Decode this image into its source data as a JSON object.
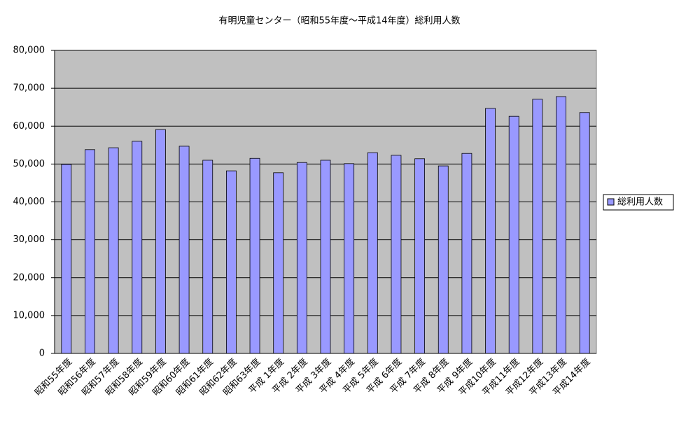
{
  "chart_data": {
    "type": "bar",
    "title": "有明児童センター（昭和55年度～平成14年度）総利用人数",
    "categories": [
      "昭和55年度",
      "昭和56年度",
      "昭和57年度",
      "昭和58年度",
      "昭和59年度",
      "昭和60年度",
      "昭和61年度",
      "昭和62年度",
      "昭和63年度",
      "平成 1年度",
      "平成 2年度",
      "平成 3年度",
      "平成 4年度",
      "平成 5年度",
      "平成 6年度",
      "平成 7年度",
      "平成 8年度",
      "平成 9年度",
      "平成10年度",
      "平成11年度",
      "平成12年度",
      "平成13年度",
      "平成14年度"
    ],
    "series": [
      {
        "name": "総利用人数",
        "color": "#9999ff",
        "values": [
          49900,
          53800,
          54300,
          56000,
          59100,
          54700,
          51000,
          48200,
          51500,
          47700,
          50400,
          51000,
          50100,
          53000,
          52300,
          51400,
          49500,
          52800,
          64700,
          62600,
          67100,
          67800,
          63600
        ]
      }
    ],
    "ylim": [
      0,
      80000
    ],
    "yticks": [
      0,
      {
        "value": 10000,
        "label": "10,000"
      },
      {
        "value": 20000,
        "label": "20,000"
      },
      {
        "value": 30000,
        "label": "30,000"
      },
      {
        "value": 40000,
        "label": "40,000"
      },
      {
        "value": 50000,
        "label": "50,000"
      },
      {
        "value": 60000,
        "label": "60,000"
      },
      {
        "value": 70000,
        "label": "70,000"
      },
      {
        "value": 80000,
        "label": "80,000"
      }
    ],
    "grid": true,
    "legend": "right"
  }
}
